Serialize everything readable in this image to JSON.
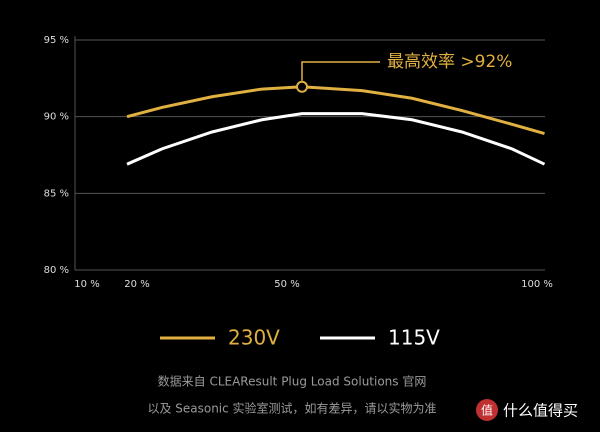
{
  "chart_data": {
    "type": "line",
    "annotation": "最高效率 >92%",
    "x": [
      18,
      25,
      35,
      45,
      53,
      65,
      75,
      85,
      95,
      101.5
    ],
    "series": [
      {
        "name": "230V",
        "color": "#e0b040",
        "values": [
          90.0,
          90.6,
          91.3,
          91.8,
          91.95,
          91.7,
          91.2,
          90.4,
          89.5,
          88.9
        ]
      },
      {
        "name": "115V",
        "color": "#ffffff",
        "values": [
          86.9,
          87.9,
          89.0,
          89.8,
          90.2,
          90.2,
          89.8,
          89.0,
          87.9,
          86.9
        ]
      }
    ],
    "xlim": [
      7.6,
      101.6
    ],
    "xticks": [
      {
        "value": 10,
        "label": "10 %"
      },
      {
        "value": 20,
        "label": "20 %"
      },
      {
        "value": 50,
        "label": "50 %"
      },
      {
        "value": 100,
        "label": "100 %"
      }
    ],
    "ylim": [
      80,
      95
    ],
    "yticks": [
      {
        "value": 80,
        "label": "80 %"
      },
      {
        "value": 85,
        "label": "85 %"
      },
      {
        "value": 90,
        "label": "90 %"
      },
      {
        "value": 95,
        "label": "95 %"
      }
    ],
    "grid": true,
    "footer": [
      "数据来自 CLEAResult Plug Load Solutions 官网",
      "以及 Seasonic 实验室测试，如有差异，请以实物为准"
    ],
    "logo": "什么值得买"
  }
}
